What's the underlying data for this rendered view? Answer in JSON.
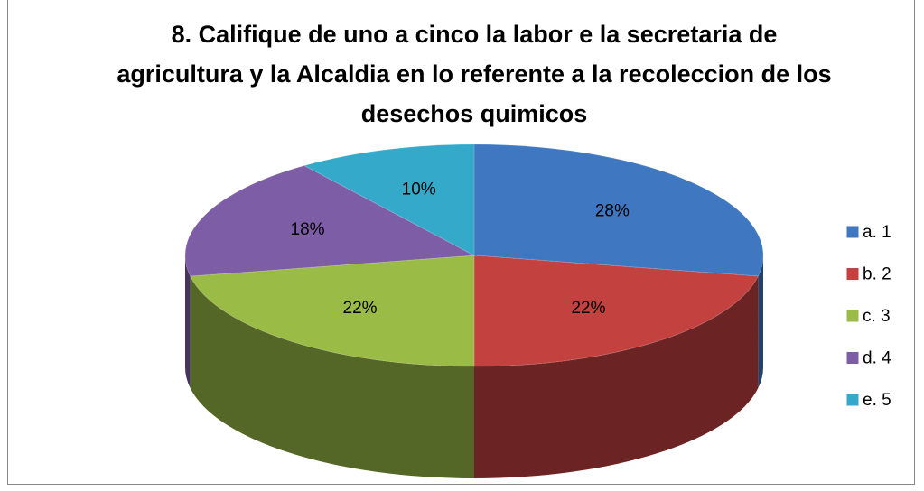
{
  "chart_data": {
    "type": "pie",
    "title": "8. Califique de uno a cinco la labor e la secretaria de agricultura y la Alcaldia en lo referente a la recoleccion de los desechos quimicos",
    "categories": [
      "a. 1",
      "b. 2",
      "c. 3",
      "d. 4",
      "e. 5"
    ],
    "values": [
      28,
      22,
      22,
      18,
      10
    ],
    "value_labels": [
      "28%",
      "22%",
      "22%",
      "18%",
      "10%"
    ],
    "colors": [
      "#3f78c0",
      "#c3413f",
      "#9bbb47",
      "#7d5ea6",
      "#35a9c9"
    ],
    "legend": "right"
  }
}
